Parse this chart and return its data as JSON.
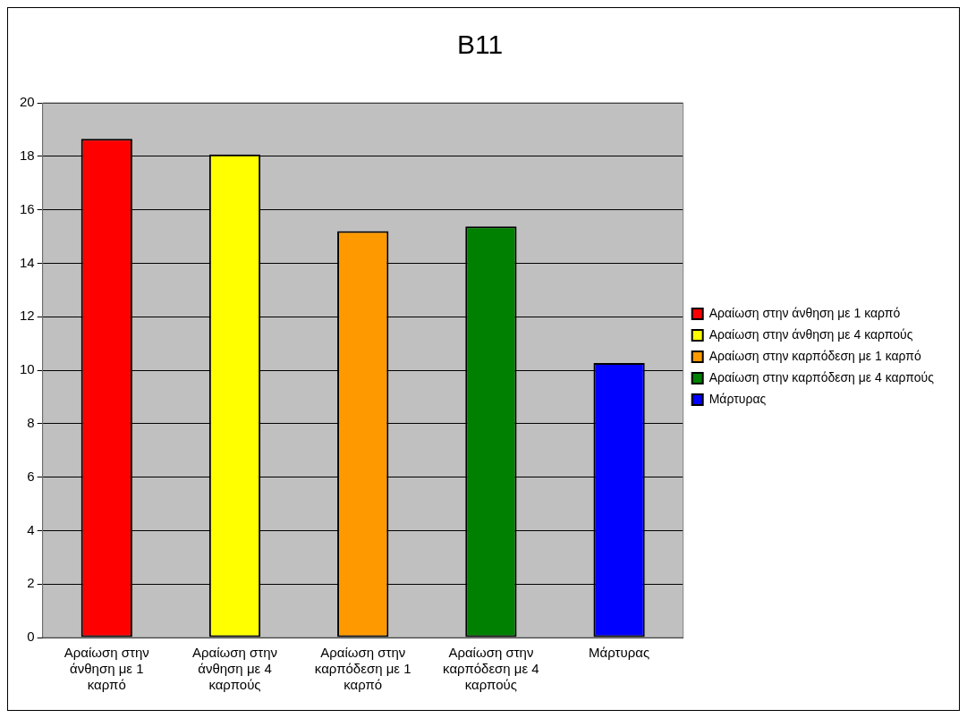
{
  "chart_data": {
    "type": "bar",
    "title": "B11",
    "categories": [
      "Αραίωση στην άνθηση με 1 καρπό",
      "Αραίωση στην άνθηση με 4 καρπούς",
      "Αραίωση στην καρπόδεση με 1 καρπό",
      "Αραίωση στην καρπόδεση με 4 καρπούς",
      "Μάρτυρας"
    ],
    "series": [
      {
        "name": "Αραίωση στην άνθηση με 1 καρπό",
        "color": "#ff0000",
        "values": [
          18.65,
          null,
          null,
          null,
          null
        ]
      },
      {
        "name": "Αραίωση στην άνθηση με 4 καρπούς",
        "color": "#ffff00",
        "values": [
          null,
          18.07,
          null,
          null,
          null
        ]
      },
      {
        "name": "Αραίωση στην καρπόδεση με 1 καρπό",
        "color": "#ff9900",
        "values": [
          null,
          null,
          15.2,
          null,
          null
        ]
      },
      {
        "name": "Αραίωση στην καρπόδεση με 4 καρπούς",
        "color": "#008000",
        "values": [
          null,
          null,
          null,
          15.38,
          null
        ]
      },
      {
        "name": "Μάρτυρας",
        "color": "#0000ff",
        "values": [
          null,
          null,
          null,
          null,
          10.27
        ]
      }
    ],
    "ylim": [
      0,
      20
    ],
    "yticks": [
      0,
      2,
      4,
      6,
      8,
      10,
      12,
      14,
      16,
      18,
      20
    ],
    "grid": "y",
    "legend": "right"
  }
}
